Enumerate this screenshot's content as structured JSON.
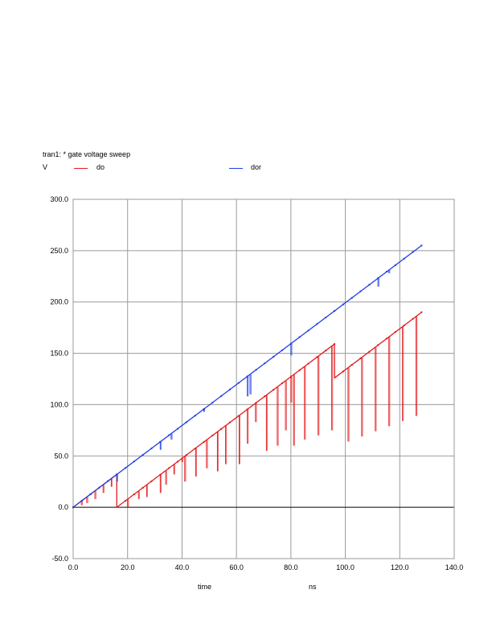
{
  "chart_data": {
    "type": "line",
    "title": "tran1: * gate voltage sweep",
    "ylabel": "V",
    "xlabel": "time",
    "xunit": "ns",
    "xlim": [
      0.0,
      140.0
    ],
    "ylim": [
      -50.0,
      300.0
    ],
    "xticks": [
      "0.0",
      "20.0",
      "40.0",
      "60.0",
      "80.0",
      "100.0",
      "120.0",
      "140.0"
    ],
    "yticks": [
      "-50.0",
      "0.0",
      "50.0",
      "100.0",
      "150.0",
      "200.0",
      "250.0",
      "300.0"
    ],
    "grid": true,
    "legend_position": "top",
    "colors": {
      "do": "#e31a1c",
      "dor": "#1f3fe6",
      "grid": "#9a9a9a",
      "zero": "#000000"
    },
    "series": [
      {
        "name": "do",
        "x": [
          0,
          16.0,
          16.05,
          96.0,
          96.05,
          128.0
        ],
        "values": [
          0,
          32.0,
          0,
          159.0,
          126.0,
          190.0
        ],
        "spikes": [
          [
            3,
            2
          ],
          [
            5,
            4
          ],
          [
            8,
            8
          ],
          [
            11,
            14
          ],
          [
            14,
            20
          ],
          [
            20,
            0
          ],
          [
            24,
            8
          ],
          [
            27,
            10
          ],
          [
            32,
            14
          ],
          [
            34,
            22
          ],
          [
            37,
            32
          ],
          [
            40,
            44
          ],
          [
            41,
            25
          ],
          [
            45,
            30
          ],
          [
            49,
            38
          ],
          [
            53,
            35
          ],
          [
            56,
            42
          ],
          [
            61,
            42
          ],
          [
            64,
            62
          ],
          [
            67,
            83
          ],
          [
            71,
            55
          ],
          [
            75,
            60
          ],
          [
            78,
            75
          ],
          [
            80,
            102
          ],
          [
            81,
            60
          ],
          [
            85,
            66
          ],
          [
            90,
            70
          ],
          [
            95,
            75
          ],
          [
            101,
            64
          ],
          [
            106,
            69
          ],
          [
            111,
            74
          ],
          [
            116,
            79
          ],
          [
            121,
            84
          ],
          [
            126,
            89
          ]
        ]
      },
      {
        "name": "dor",
        "x": [
          0,
          128.0
        ],
        "values": [
          0,
          255.0
        ],
        "spikes": [
          [
            16,
            25
          ],
          [
            32,
            56
          ],
          [
            36,
            66
          ],
          [
            48,
            93
          ],
          [
            64,
            108
          ],
          [
            65,
            110
          ],
          [
            80,
            148
          ],
          [
            96,
            192
          ],
          [
            112,
            215
          ],
          [
            116,
            228
          ]
        ]
      }
    ]
  }
}
